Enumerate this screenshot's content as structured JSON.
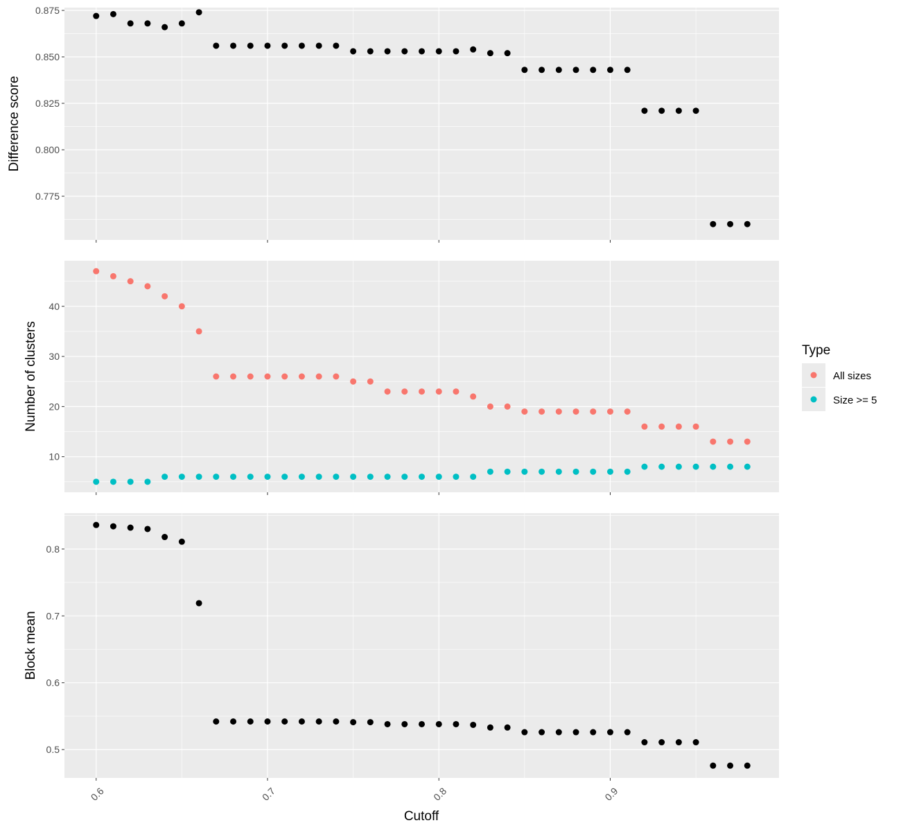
{
  "chart_data": {
    "type": "scatter",
    "xlabel": "Cutoff",
    "x": [
      0.6,
      0.61,
      0.62,
      0.63,
      0.64,
      0.65,
      0.66,
      0.67,
      0.68,
      0.69,
      0.7,
      0.71,
      0.72,
      0.73,
      0.74,
      0.75,
      0.76,
      0.77,
      0.78,
      0.79,
      0.8,
      0.81,
      0.82,
      0.83,
      0.84,
      0.85,
      0.86,
      0.87,
      0.88,
      0.89,
      0.9,
      0.91,
      0.92,
      0.93,
      0.94,
      0.95,
      0.96,
      0.97,
      0.98
    ],
    "xlim": [
      0.5815,
      0.9985
    ],
    "x_ticks": [
      0.6,
      0.7,
      0.8,
      0.9
    ],
    "x_tick_labels": [
      "0.6",
      "0.7",
      "0.8",
      "0.9"
    ],
    "grid": true,
    "background": "#ebebeb",
    "legend": {
      "title": "Type",
      "placement": "right",
      "entries": [
        {
          "label": "All sizes",
          "color": "#f8766d"
        },
        {
          "label": "Size >= 5",
          "color": "#00bfc4"
        }
      ]
    },
    "panels": [
      {
        "ylabel": "Difference score",
        "ylim": [
          0.7515,
          0.8765
        ],
        "y_ticks": [
          0.775,
          0.8,
          0.825,
          0.85,
          0.875
        ],
        "y_tick_labels": [
          "0.775",
          "0.800",
          "0.825",
          "0.850",
          "0.875"
        ],
        "series": [
          {
            "color": "#000000",
            "values": [
              0.872,
              0.873,
              0.868,
              0.868,
              0.866,
              0.868,
              0.874,
              0.856,
              0.856,
              0.856,
              0.856,
              0.856,
              0.856,
              0.856,
              0.856,
              0.853,
              0.853,
              0.853,
              0.853,
              0.853,
              0.853,
              0.853,
              0.854,
              0.852,
              0.852,
              0.843,
              0.843,
              0.843,
              0.843,
              0.843,
              0.843,
              0.843,
              0.821,
              0.821,
              0.821,
              0.821,
              0.76,
              0.76,
              0.76
            ]
          }
        ]
      },
      {
        "ylabel": "Number of clusters",
        "ylim": [
          2.9,
          49.1
        ],
        "y_ticks": [
          10,
          20,
          30,
          40
        ],
        "y_tick_labels": [
          "10",
          "20",
          "30",
          "40"
        ],
        "series": [
          {
            "name": "All sizes",
            "color": "#f8766d",
            "values": [
              47,
              46,
              45,
              44,
              42,
              40,
              35,
              26,
              26,
              26,
              26,
              26,
              26,
              26,
              26,
              25,
              25,
              23,
              23,
              23,
              23,
              23,
              22,
              20,
              20,
              19,
              19,
              19,
              19,
              19,
              19,
              19,
              16,
              16,
              16,
              16,
              13,
              13,
              13
            ]
          },
          {
            "name": "Size >= 5",
            "color": "#00bfc4",
            "values": [
              5,
              5,
              5,
              5,
              6,
              6,
              6,
              6,
              6,
              6,
              6,
              6,
              6,
              6,
              6,
              6,
              6,
              6,
              6,
              6,
              6,
              6,
              6,
              7,
              7,
              7,
              7,
              7,
              7,
              7,
              7,
              7,
              8,
              8,
              8,
              8,
              8,
              8,
              8
            ]
          }
        ]
      },
      {
        "ylabel": "Block mean",
        "ylim": [
          0.4576,
          0.8538
        ],
        "y_ticks": [
          0.5,
          0.6,
          0.7,
          0.8
        ],
        "y_tick_labels": [
          "0.5",
          "0.6",
          "0.7",
          "0.8"
        ],
        "series": [
          {
            "color": "#000000",
            "values": [
              0.836,
              0.834,
              0.832,
              0.83,
              0.818,
              0.811,
              0.719,
              0.542,
              0.542,
              0.542,
              0.542,
              0.542,
              0.542,
              0.542,
              0.542,
              0.541,
              0.541,
              0.538,
              0.538,
              0.538,
              0.538,
              0.538,
              0.537,
              0.533,
              0.533,
              0.526,
              0.526,
              0.526,
              0.526,
              0.526,
              0.526,
              0.526,
              0.511,
              0.511,
              0.511,
              0.511,
              0.476,
              0.476,
              0.476
            ]
          }
        ]
      }
    ]
  }
}
